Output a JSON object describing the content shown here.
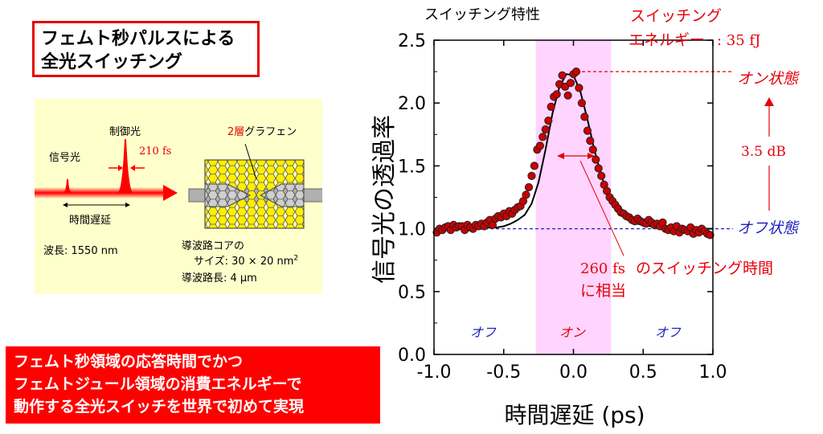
{
  "title": {
    "line1": "フェムト秒パルスによる",
    "line2": "全光スイッチング"
  },
  "schematic": {
    "control_light": "制御光",
    "signal_light": "信号光",
    "pulse_width": "210 fs",
    "time_delay": "時間遅延",
    "wavelength": "波長: 1550 nm",
    "graphene_prefix": "2層",
    "graphene_suffix": "グラフェン",
    "core_line1": "導波路コアの",
    "core_line2": "サイズ: 30 × 20 nm",
    "core_sup": "2",
    "length": "導波路長: 4 μm"
  },
  "banner": {
    "line1": "フェムト秒領域の応答時間でかつ",
    "line2": "フェムトジュール領域の消費エネルギーで",
    "line3": "動作する全光スイッチを世界で初めて実現"
  },
  "chart_data": {
    "type": "scatter",
    "title": "スイッチング特性",
    "xlabel": "時間遅延 (ps)",
    "ylabel": "信号光の透過率",
    "xlim": [
      -1.0,
      1.0
    ],
    "ylim": [
      0.0,
      2.5
    ],
    "xticks": [
      "-1.0",
      "-0.5",
      "0.0",
      "0.5",
      "1.0"
    ],
    "yticks": [
      "0.0",
      "0.5",
      "1.0",
      "1.5",
      "2.0",
      "2.5"
    ],
    "colors": {
      "points": "#cc0000",
      "fit": "#000000",
      "highlight": "#ff66ff",
      "annotation": "#e8000b",
      "off": "#2020c0"
    },
    "highlight_range": [
      -0.27,
      0.27
    ],
    "on_level": 2.25,
    "off_level": 1.0,
    "x": [
      -0.98,
      -0.96,
      -0.94,
      -0.92,
      -0.9,
      -0.88,
      -0.86,
      -0.84,
      -0.82,
      -0.8,
      -0.78,
      -0.76,
      -0.74,
      -0.72,
      -0.7,
      -0.68,
      -0.66,
      -0.64,
      -0.62,
      -0.6,
      -0.58,
      -0.56,
      -0.54,
      -0.52,
      -0.5,
      -0.48,
      -0.46,
      -0.44,
      -0.42,
      -0.4,
      -0.38,
      -0.36,
      -0.34,
      -0.32,
      -0.3,
      -0.28,
      -0.26,
      -0.24,
      -0.22,
      -0.2,
      -0.18,
      -0.16,
      -0.14,
      -0.12,
      -0.1,
      -0.08,
      -0.06,
      -0.04,
      -0.02,
      0.0,
      0.02,
      0.04,
      0.06,
      0.08,
      0.1,
      0.12,
      0.14,
      0.16,
      0.18,
      0.2,
      0.22,
      0.24,
      0.26,
      0.28,
      0.3,
      0.32,
      0.34,
      0.36,
      0.38,
      0.4,
      0.42,
      0.44,
      0.46,
      0.48,
      0.5,
      0.52,
      0.54,
      0.56,
      0.58,
      0.6,
      0.62,
      0.64,
      0.66,
      0.68,
      0.7,
      0.72,
      0.74,
      0.76,
      0.78,
      0.8,
      0.82,
      0.84,
      0.86,
      0.88,
      0.9,
      0.92,
      0.94,
      0.96,
      0.98
    ],
    "y": [
      0.97,
      1.0,
      0.99,
      1.01,
      1.02,
      0.99,
      1.03,
      1.01,
      1.02,
      1.02,
      0.99,
      1.03,
      1.01,
      1.0,
      1.03,
      1.02,
      1.04,
      1.02,
      1.05,
      1.07,
      1.03,
      1.08,
      1.1,
      1.09,
      1.12,
      1.1,
      1.14,
      1.12,
      1.15,
      1.17,
      1.18,
      1.22,
      1.27,
      1.33,
      1.42,
      1.5,
      1.63,
      1.66,
      1.73,
      1.79,
      1.86,
      1.97,
      2.05,
      2.07,
      2.15,
      2.22,
      2.13,
      2.06,
      2.16,
      2.23,
      2.25,
      2.12,
      2.0,
      1.89,
      1.78,
      1.7,
      1.63,
      1.55,
      1.48,
      1.42,
      1.35,
      1.3,
      1.25,
      1.22,
      1.19,
      1.16,
      1.13,
      1.12,
      1.1,
      1.09,
      1.07,
      1.06,
      1.08,
      1.06,
      1.05,
      1.04,
      1.07,
      1.05,
      1.03,
      1.04,
      1.02,
      1.05,
      1.0,
      0.99,
      1.01,
      0.98,
      1.02,
      0.97,
      1.0,
      0.99,
      0.98,
      1.01,
      0.96,
      0.99,
      0.97,
      1.0,
      0.98,
      0.96,
      0.95
    ],
    "fit_x": [
      -1.0,
      -0.95,
      -0.9,
      -0.85,
      -0.8,
      -0.75,
      -0.7,
      -0.65,
      -0.6,
      -0.55,
      -0.5,
      -0.45,
      -0.4,
      -0.35,
      -0.3,
      -0.25,
      -0.2,
      -0.15,
      -0.1,
      -0.05,
      0.0,
      0.05,
      0.1,
      0.15,
      0.2,
      0.25,
      0.3,
      0.35,
      0.4,
      0.45,
      0.5,
      0.55,
      0.6,
      0.65,
      0.7,
      0.75,
      0.8,
      0.85,
      0.9,
      0.95,
      1.0
    ],
    "fit_y": [
      1.0,
      1.0,
      1.0,
      1.0,
      1.0,
      1.0,
      1.0,
      1.0,
      1.01,
      1.01,
      1.02,
      1.04,
      1.07,
      1.11,
      1.2,
      1.37,
      1.63,
      1.92,
      2.13,
      2.23,
      2.22,
      2.09,
      1.87,
      1.63,
      1.42,
      1.27,
      1.17,
      1.11,
      1.07,
      1.04,
      1.03,
      1.02,
      1.01,
      1.01,
      1.0,
      1.0,
      1.0,
      1.0,
      1.0,
      1.0,
      1.0
    ],
    "annotations": {
      "energy_line1": "スイッチング",
      "energy_line2": "エネルギー",
      "energy_value": ": 35 fJ",
      "on_state": "オン状態",
      "off_state": "オフ状態",
      "change": "3.5 dB",
      "switch_time_line1": "260 fs",
      "switch_time_line1b": "のスイッチング時間",
      "switch_time_line2": "に相当",
      "region_off_left": "オフ",
      "region_on": "オン",
      "region_off_right": "オフ"
    }
  }
}
